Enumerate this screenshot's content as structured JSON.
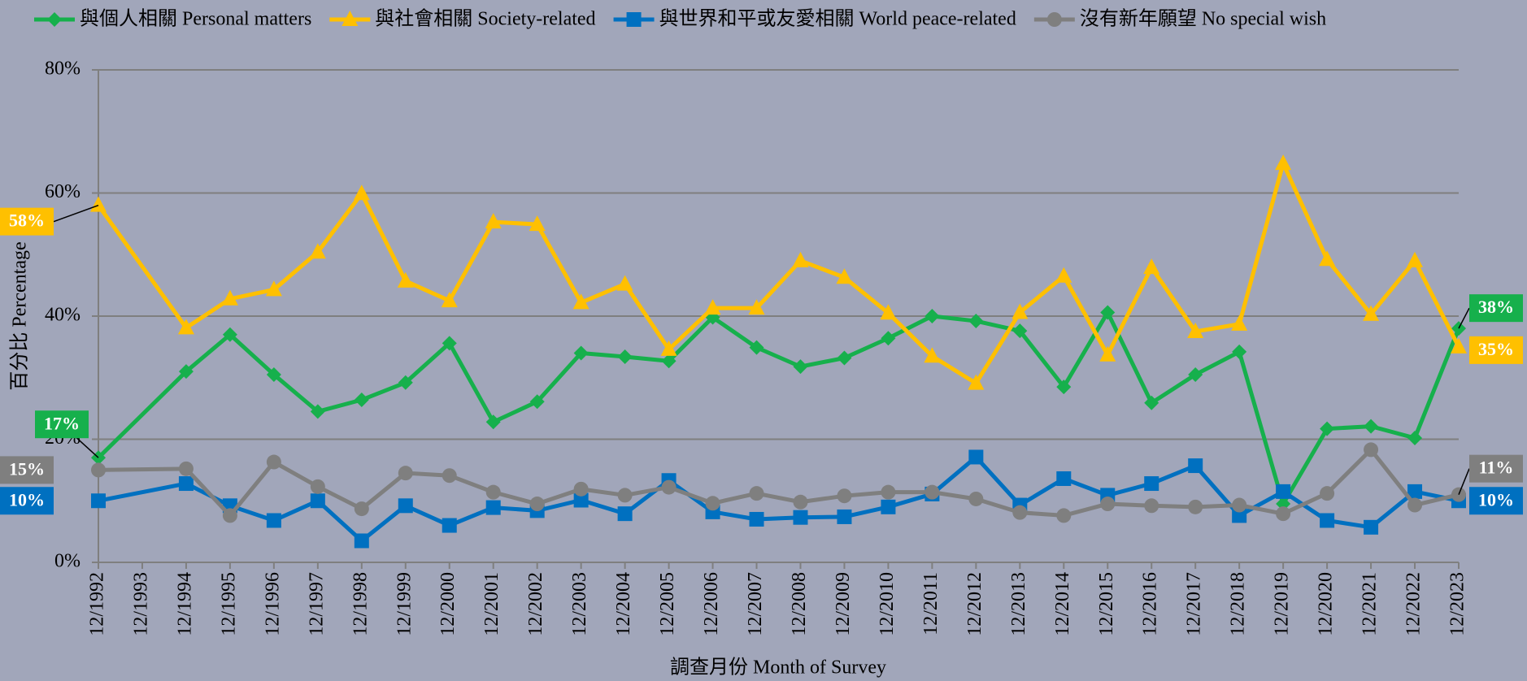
{
  "chart_data": {
    "type": "line",
    "x_label": "調查月份 Month of Survey",
    "y_label": "百分比 Percentage",
    "categories": [
      "12/1992",
      "12/1993",
      "12/1994",
      "12/1995",
      "12/1996",
      "12/1997",
      "12/1998",
      "12/1999",
      "12/2000",
      "12/2001",
      "12/2002",
      "12/2003",
      "12/2004",
      "12/2005",
      "12/2006",
      "12/2007",
      "12/2008",
      "12/2009",
      "12/2010",
      "12/2011",
      "12/2012",
      "12/2013",
      "12/2014",
      "12/2015",
      "12/2016",
      "12/2017",
      "12/2018",
      "12/2019",
      "12/2020",
      "12/2021",
      "12/2022",
      "12/2023"
    ],
    "series": [
      {
        "name": "與個人相關 Personal matters",
        "color": "#16b04c",
        "marker": "diamond",
        "values": [
          17,
          null,
          31,
          37,
          30.5,
          24.5,
          26.4,
          29.2,
          35.6,
          22.8,
          26.1,
          34,
          33.4,
          32.7,
          39.8,
          34.9,
          31.8,
          33.2,
          36.4,
          40,
          39.2,
          37.6,
          28.5,
          40.6,
          25.9,
          30.5,
          34.2,
          9.5,
          21.7,
          22.1,
          20.2,
          38
        ],
        "value_labels": [
          "17%",
          null,
          null,
          null,
          null,
          null,
          null,
          null,
          null,
          null,
          null,
          null,
          null,
          null,
          null,
          null,
          null,
          null,
          null,
          null,
          null,
          null,
          null,
          null,
          null,
          null,
          null,
          null,
          null,
          null,
          null,
          "38%"
        ]
      },
      {
        "name": "與社會相關 Society-related",
        "color": "#ffc000",
        "marker": "triangle",
        "values": [
          58,
          null,
          38.1,
          42.8,
          44.3,
          50.4,
          59.9,
          45.7,
          42.5,
          55.3,
          54.9,
          42.2,
          45.2,
          34.6,
          41.3,
          41.3,
          49,
          46.3,
          40.5,
          33.5,
          29.1,
          40.6,
          46.5,
          33.7,
          47.9,
          37.5,
          38.7,
          64.8,
          49.2,
          40.3,
          49,
          35
        ],
        "value_labels": [
          "58%",
          null,
          null,
          null,
          null,
          null,
          null,
          null,
          null,
          null,
          null,
          null,
          null,
          null,
          null,
          null,
          null,
          null,
          null,
          null,
          null,
          null,
          null,
          null,
          null,
          null,
          null,
          null,
          null,
          null,
          null,
          "35%"
        ]
      },
      {
        "name": "與世界和平或友愛相關 World peace-related",
        "color": "#0070c0",
        "marker": "square",
        "values": [
          10,
          null,
          12.8,
          9.2,
          6.8,
          10,
          3.5,
          9.2,
          6,
          8.9,
          8.4,
          10.1,
          7.9,
          13.3,
          8.2,
          7,
          7.3,
          7.4,
          9,
          11.1,
          17.1,
          9.3,
          13.6,
          10.9,
          12.8,
          15.7,
          7.6,
          11.5,
          6.8,
          5.7,
          11.5,
          10
        ],
        "value_labels": [
          "10%",
          null,
          null,
          null,
          null,
          null,
          null,
          null,
          null,
          null,
          null,
          null,
          null,
          null,
          null,
          null,
          null,
          null,
          null,
          null,
          null,
          null,
          null,
          null,
          null,
          null,
          null,
          null,
          null,
          null,
          null,
          "10%"
        ]
      },
      {
        "name": "沒有新年願望 No special wish",
        "color": "#7f7f7f",
        "marker": "circle",
        "values": [
          15,
          null,
          15.2,
          7.6,
          16.3,
          12.3,
          8.7,
          14.5,
          14.1,
          11.4,
          9.5,
          11.9,
          10.9,
          12.2,
          9.6,
          11.2,
          9.8,
          10.8,
          11.4,
          11.4,
          10.3,
          8.1,
          7.6,
          9.5,
          9.2,
          9,
          9.3,
          7.9,
          11.2,
          18.3,
          9.3,
          11
        ],
        "value_labels": [
          "15%",
          null,
          null,
          null,
          null,
          null,
          null,
          null,
          null,
          null,
          null,
          null,
          null,
          null,
          null,
          null,
          null,
          null,
          null,
          null,
          null,
          null,
          null,
          null,
          null,
          null,
          null,
          null,
          null,
          null,
          null,
          "11%"
        ]
      }
    ],
    "ylim": [
      0,
      80
    ],
    "yticks": [
      {
        "value": 0,
        "label": "0%"
      },
      {
        "value": 20,
        "label": "20%"
      },
      {
        "value": 40,
        "label": "40%"
      },
      {
        "value": 60,
        "label": "60%"
      },
      {
        "value": 80,
        "label": "80%"
      }
    ],
    "grid": true
  }
}
